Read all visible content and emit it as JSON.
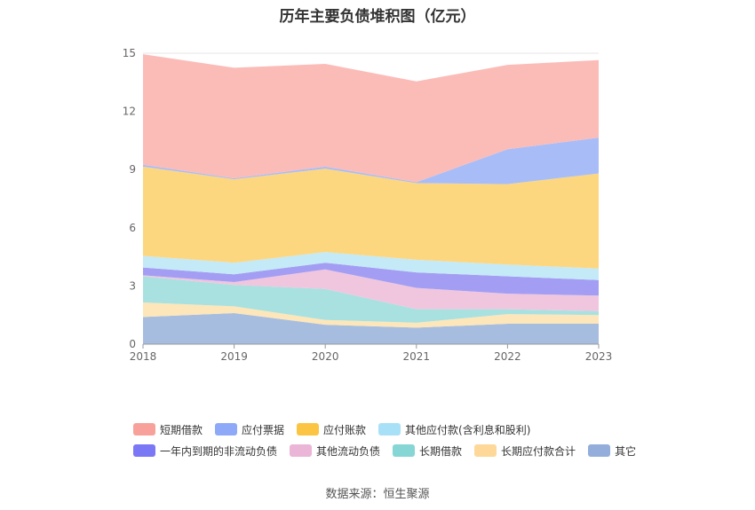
{
  "chart_data": {
    "type": "area",
    "title": "历年主要负债堆积图（亿元）",
    "categories": [
      "2018",
      "2019",
      "2020",
      "2021",
      "2022",
      "2023"
    ],
    "ylim": [
      0,
      15
    ],
    "yticks": [
      "0",
      "3",
      "6",
      "9",
      "12",
      "15"
    ],
    "grid": true,
    "legend_position": "bottom",
    "series": [
      {
        "name": "其它",
        "color": "#a7bde0",
        "values": [
          1.4,
          1.6,
          1.0,
          0.85,
          1.05,
          1.05
        ]
      },
      {
        "name": "长期应付款合计",
        "color": "#fde6b9",
        "values": [
          0.75,
          0.35,
          0.25,
          0.25,
          0.5,
          0.45
        ]
      },
      {
        "name": "长期借款",
        "color": "#a9e1e0",
        "values": [
          1.35,
          1.1,
          1.6,
          0.7,
          0.25,
          0.2
        ]
      },
      {
        "name": "其他流动负债",
        "color": "#f0c6de",
        "values": [
          0.05,
          0.15,
          1.0,
          1.1,
          0.8,
          0.8
        ]
      },
      {
        "name": "一年内到期的非流动负债",
        "color": "#a39ef3",
        "values": [
          0.4,
          0.4,
          0.35,
          0.8,
          0.9,
          0.8
        ]
      },
      {
        "name": "其他应付款(含利息和股利)",
        "color": "#c4e9f7",
        "values": [
          0.6,
          0.6,
          0.55,
          0.65,
          0.6,
          0.6
        ]
      },
      {
        "name": "应付账款",
        "color": "#fdd77f",
        "values": [
          4.6,
          4.3,
          4.3,
          3.95,
          4.15,
          4.9
        ]
      },
      {
        "name": "应付票据",
        "color": "#a8bdf8",
        "values": [
          0.1,
          0.05,
          0.1,
          0.05,
          1.8,
          1.85
        ]
      },
      {
        "name": "短期借款",
        "color": "#fbbcb8",
        "values": [
          5.7,
          5.7,
          5.3,
          5.2,
          4.35,
          4.0
        ]
      }
    ]
  },
  "legend": {
    "row1": [
      {
        "label": "短期借款",
        "color": "#f8a19a"
      },
      {
        "label": "应付票据",
        "color": "#8ea9f7"
      },
      {
        "label": "应付账款",
        "color": "#fcc443"
      },
      {
        "label": "其他应付款(含利息和股利)",
        "color": "#a8e1f7"
      }
    ],
    "row2": [
      {
        "label": "一年内到期的非流动负债",
        "color": "#7b78f5"
      },
      {
        "label": "其他流动负债",
        "color": "#ebb5d8"
      },
      {
        "label": "长期借款",
        "color": "#86d6d6"
      },
      {
        "label": "长期应付款合计",
        "color": "#fdd898"
      },
      {
        "label": "其它",
        "color": "#94aedb"
      }
    ]
  },
  "source": "数据来源：恒生聚源"
}
